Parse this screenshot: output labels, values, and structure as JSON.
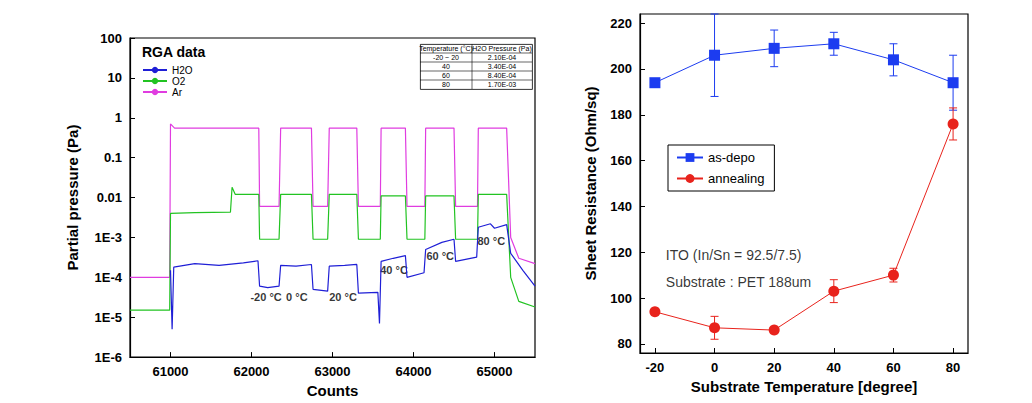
{
  "chart_data": [
    {
      "type": "line",
      "title": "RGA data",
      "x_label": "Counts",
      "y_label": "Partial pressure (Pa)",
      "log": "y",
      "grid": false,
      "legend": "upper left",
      "xlim": [
        60500,
        65500
      ],
      "xticks": [
        61000,
        62000,
        63000,
        64000,
        65000
      ],
      "ylim": [
        1e-06,
        100
      ],
      "yticks": [
        {
          "value": 1e-06,
          "label": "1E-6"
        },
        {
          "value": 1e-05,
          "label": "1E-5"
        },
        {
          "value": 0.0001,
          "label": "1E-4"
        },
        {
          "value": 0.001,
          "label": "1E-3"
        },
        0.01,
        0.1,
        1,
        10,
        100
      ],
      "series": [
        {
          "name": "H2O",
          "color": "#1f1fd6",
          "x": [
            61000,
            61020,
            61040,
            61300,
            61600,
            61900,
            62080,
            62100,
            62200,
            62340,
            62360,
            62550,
            62740,
            62760,
            62940,
            62960,
            63150,
            63300,
            63320,
            63560,
            63580,
            63600,
            63750,
            63900,
            63920,
            64130,
            64150,
            64350,
            64500,
            64520,
            64780,
            64800,
            64950,
            65000,
            65150,
            65200,
            65350,
            65500
          ],
          "values": [
            0.00015,
            5e-06,
            0.00018,
            0.00022,
            0.0002,
            0.00023,
            0.00026,
            6e-05,
            5.5e-05,
            6e-05,
            0.0002,
            0.00019,
            0.00021,
            5e-05,
            4.5e-05,
            0.00019,
            0.0002,
            0.00021,
            4e-05,
            4.2e-05,
            7e-06,
            0.00025,
            0.0003,
            0.00035,
            0.0001,
            0.00013,
            0.0005,
            0.00075,
            0.0009,
            0.00025,
            0.00032,
            0.0018,
            0.0022,
            0.0017,
            0.0021,
            0.0004,
            0.00015,
            6e-05
          ]
        },
        {
          "name": "O2",
          "color": "#22c322",
          "x": [
            60500,
            60990,
            61000,
            61300,
            61740,
            61760,
            61800,
            62090,
            62100,
            62340,
            62360,
            62740,
            62760,
            62940,
            62960,
            63300,
            63320,
            63590,
            63600,
            63900,
            63920,
            64140,
            64150,
            64500,
            64520,
            64790,
            64800,
            65150,
            65200,
            65300,
            65500
          ],
          "values": [
            1.5e-05,
            1.5e-05,
            0.004,
            0.0042,
            0.0043,
            0.018,
            0.012,
            0.012,
            0.0009,
            0.0009,
            0.012,
            0.012,
            0.0009,
            0.0009,
            0.012,
            0.012,
            0.0009,
            0.0009,
            0.011,
            0.011,
            0.0009,
            0.0009,
            0.011,
            0.011,
            0.0009,
            0.0009,
            0.012,
            0.012,
            0.0001,
            2.5e-05,
            1.8e-05
          ]
        },
        {
          "name": "Ar",
          "color": "#e03ce0",
          "x": [
            60500,
            60990,
            61000,
            61050,
            62090,
            62100,
            62340,
            62360,
            62740,
            62760,
            62940,
            62960,
            63300,
            63320,
            63590,
            63600,
            63900,
            63920,
            64140,
            64150,
            64500,
            64520,
            64790,
            64800,
            65150,
            65200,
            65300,
            65500
          ],
          "values": [
            0.0001,
            0.0001,
            0.7,
            0.55,
            0.55,
            0.006,
            0.006,
            0.55,
            0.55,
            0.006,
            0.006,
            0.55,
            0.55,
            0.006,
            0.006,
            0.55,
            0.55,
            0.006,
            0.006,
            0.55,
            0.55,
            0.006,
            0.006,
            0.55,
            0.55,
            0.001,
            0.0003,
            0.00022
          ]
        }
      ],
      "table": {
        "header": [
          "Temperature (°C)",
          "H2O Pressure (Pa)"
        ],
        "rows": [
          {
            "temperature": "-20 ~ 20",
            "pressure": {
              "value": 0.00021,
              "label": "2.10E-04"
            },
            "color": "#d02020"
          },
          {
            "temperature": "40",
            "pressure": {
              "value": 0.00034,
              "label": "3.40E-04"
            },
            "color": "#a0522d"
          },
          {
            "temperature": "60",
            "pressure": {
              "value": 0.00084,
              "label": "8.40E-04"
            },
            "color": "#e8a020"
          },
          {
            "temperature": "80",
            "pressure": {
              "value": 0.0017,
              "label": "1.70E-03"
            },
            "color": "#9a3cc8"
          }
        ]
      },
      "annotations": [
        {
          "text": "-20 °C",
          "x": 62180,
          "y": 3.2e-05
        },
        {
          "text": "0 °C",
          "x": 62560,
          "y": 3.2e-05
        },
        {
          "text": "20 °C",
          "x": 63130,
          "y": 3.2e-05
        },
        {
          "text": "40 °C",
          "x": 63760,
          "y": 0.00015
        },
        {
          "text": "60 °C",
          "x": 64330,
          "y": 0.00035
        },
        {
          "text": "80 °C",
          "x": 64960,
          "y": 0.0008
        }
      ]
    },
    {
      "type": "line",
      "x_label": "Substrate Temperature [degree]",
      "y_label": "Sheet Resistance (Ohm/sq)",
      "grid": false,
      "legend": "center left",
      "xlim": [
        -25,
        85
      ],
      "xticks": [
        -20,
        0,
        20,
        40,
        60,
        80
      ],
      "ylim": [
        76,
        224
      ],
      "yticks": [
        80,
        100,
        120,
        140,
        160,
        180,
        200,
        220
      ],
      "x": [
        -20,
        0,
        20,
        40,
        60,
        80
      ],
      "series": [
        {
          "name": "as-depo",
          "color": "#1c3cf0",
          "marker": "square",
          "values": [
            194,
            206,
            209,
            211,
            204,
            194
          ],
          "errors": [
            0,
            18,
            8,
            5,
            7,
            12
          ]
        },
        {
          "name": "annealing",
          "color": "#e8231c",
          "marker": "circle",
          "values": [
            94,
            87,
            86,
            103,
            110,
            176
          ],
          "errors": [
            0,
            5,
            0,
            5,
            3,
            7
          ]
        }
      ],
      "annotations": [
        {
          "text": "ITO (In/Sn = 92.5/7.5)",
          "x": -18,
          "y": 119
        },
        {
          "text": "Substrate : PET 188um",
          "x": -18,
          "y": 107
        }
      ]
    }
  ]
}
